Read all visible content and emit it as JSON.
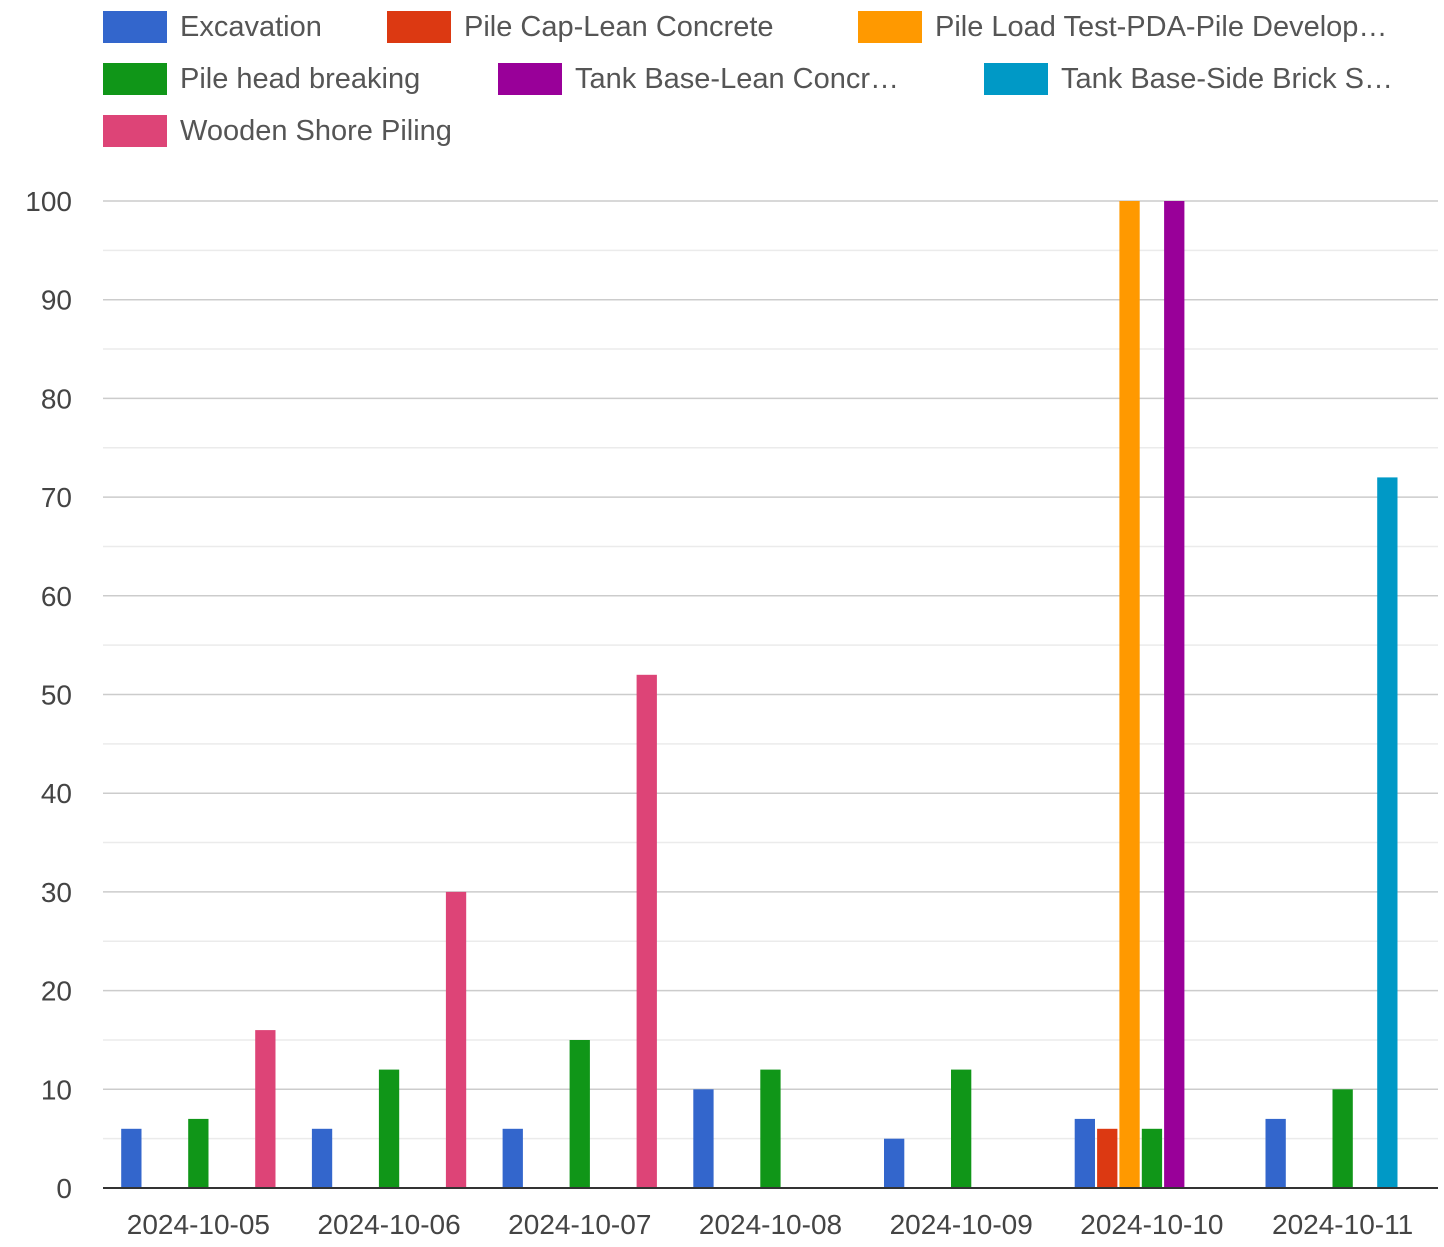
{
  "chart_data": {
    "type": "bar",
    "title": "",
    "xlabel": "",
    "ylabel": "",
    "ylim": [
      0,
      100
    ],
    "yticks": [
      0,
      10,
      20,
      30,
      40,
      50,
      60,
      70,
      80,
      90,
      100
    ],
    "grid": true,
    "legend_position": "top",
    "categories": [
      "2024-10-05",
      "2024-10-06",
      "2024-10-07",
      "2024-10-08",
      "2024-10-09",
      "2024-10-10",
      "2024-10-11"
    ],
    "series": [
      {
        "name": "Excavation",
        "color": "#3366cc",
        "values": [
          6,
          6,
          6,
          10,
          5,
          7,
          7
        ]
      },
      {
        "name": "Pile Cap-Lean Concrete",
        "color": "#dc3912",
        "values": [
          0,
          0,
          0,
          0,
          0,
          6,
          0
        ]
      },
      {
        "name": "Pile Load Test-PDA-Pile Develop…",
        "color": "#ff9900",
        "values": [
          0,
          0,
          0,
          0,
          0,
          100,
          0
        ]
      },
      {
        "name": "Pile head breaking",
        "color": "#109618",
        "values": [
          7,
          12,
          15,
          12,
          12,
          6,
          10
        ]
      },
      {
        "name": "Tank Base-Lean Concr…",
        "color": "#990099",
        "values": [
          0,
          0,
          0,
          0,
          0,
          100,
          0
        ]
      },
      {
        "name": "Tank Base-Side Brick S…",
        "color": "#0099c6",
        "values": [
          0,
          0,
          0,
          0,
          0,
          0,
          72
        ]
      },
      {
        "name": "Wooden Shore Piling",
        "color": "#dd4477",
        "values": [
          16,
          30,
          52,
          0,
          0,
          0,
          0
        ]
      }
    ]
  }
}
